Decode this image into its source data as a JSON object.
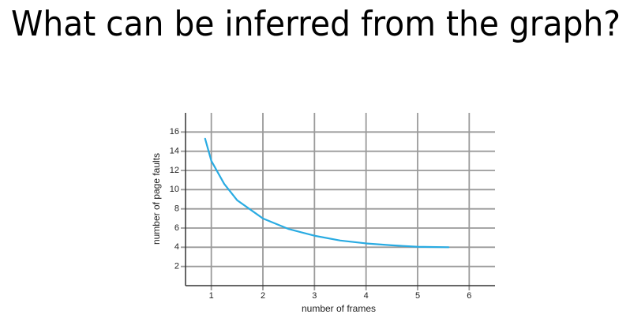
{
  "chart_data": {
    "type": "line",
    "title": "What can be inferred from the graph?",
    "x_label": "number of frames",
    "y_label": "number of page faults",
    "x": [
      0.88,
      1,
      1.25,
      1.5,
      2,
      2.5,
      3,
      3.5,
      4,
      4.5,
      5,
      5.6
    ],
    "series": [
      {
        "color": "#29abe2",
        "values": [
          15.3,
          13,
          10.6,
          8.9,
          7,
          5.9,
          5.2,
          4.7,
          4.4,
          4.2,
          4.05,
          4
        ]
      }
    ],
    "xlim": [
      0.5,
      6.5
    ],
    "xticks": [
      1,
      2,
      3,
      4,
      5,
      6
    ],
    "ylim": [
      0,
      18
    ],
    "yticks": [
      2,
      4,
      6,
      8,
      10,
      12,
      14,
      16
    ],
    "grid": true
  }
}
